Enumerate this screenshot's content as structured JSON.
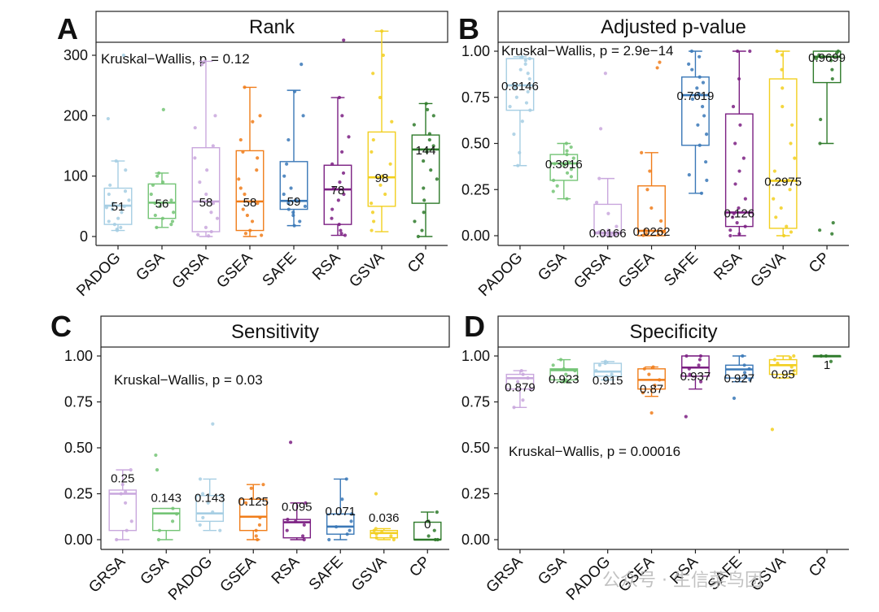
{
  "colors": {
    "PADOG": "#a6cee3",
    "GSA": "#74c476",
    "GRSA": "#c9a7dd",
    "GSEA": "#f07d1a",
    "SAFE": "#3a78b7",
    "RSA": "#7b1f82",
    "GSVA": "#f2cf1f",
    "CP": "#2e7a2a"
  },
  "watermark": "公众号 · 生信菜鸟团",
  "chart_data": [
    {
      "panel": "A",
      "type": "box",
      "title": "Rank",
      "stat_label": "Kruskal−Wallis, p = 0.12",
      "ylim": [
        0,
        340
      ],
      "yticks": [
        0,
        100,
        200,
        300
      ],
      "ytick_labels": [
        "0",
        "100",
        "200",
        "300"
      ],
      "categories": [
        "PADOG",
        "GSA",
        "GRSA",
        "GSEA",
        "SAFE",
        "RSA",
        "GSVA",
        "CP"
      ],
      "median_labels": [
        "51",
        "56",
        "58",
        "58",
        "59",
        "78",
        "98",
        "144"
      ],
      "boxes": [
        {
          "group": "PADOG",
          "min": 10,
          "q1": 20,
          "median": 51,
          "q3": 80,
          "max": 125,
          "points": [
            300,
            195,
            125,
            110,
            85,
            75,
            70,
            60,
            55,
            50,
            48,
            45,
            40,
            30,
            25,
            20,
            15,
            12,
            10
          ]
        },
        {
          "group": "GSA",
          "min": 15,
          "q1": 30,
          "median": 56,
          "q3": 87,
          "max": 105,
          "points": [
            210,
            105,
            100,
            90,
            85,
            70,
            60,
            55,
            50,
            40,
            35,
            30,
            25,
            20,
            15
          ]
        },
        {
          "group": "GRSA",
          "min": 0,
          "q1": 8,
          "median": 58,
          "q3": 147,
          "max": 290,
          "points": [
            290,
            285,
            200,
            180,
            150,
            130,
            110,
            90,
            70,
            55,
            40,
            30,
            15,
            8,
            3,
            1
          ]
        },
        {
          "group": "GSEA",
          "min": 0,
          "q1": 10,
          "median": 58,
          "q3": 142,
          "max": 247,
          "points": [
            247,
            200,
            190,
            160,
            140,
            130,
            110,
            95,
            80,
            70,
            55,
            45,
            35,
            25,
            10,
            5,
            2
          ]
        },
        {
          "group": "SAFE",
          "min": 18,
          "q1": 45,
          "median": 59,
          "q3": 124,
          "max": 242,
          "points": [
            285,
            240,
            200,
            160,
            120,
            100,
            80,
            70,
            60,
            55,
            50,
            45,
            40,
            35,
            25,
            18
          ]
        },
        {
          "group": "RSA",
          "min": 2,
          "q1": 20,
          "median": 78,
          "q3": 118,
          "max": 230,
          "points": [
            325,
            230,
            200,
            165,
            140,
            120,
            105,
            90,
            80,
            70,
            60,
            45,
            30,
            20,
            10,
            5,
            2
          ]
        },
        {
          "group": "GSVA",
          "min": 8,
          "q1": 50,
          "median": 98,
          "q3": 173,
          "max": 340,
          "points": [
            340,
            300,
            270,
            230,
            190,
            160,
            140,
            120,
            100,
            85,
            70,
            55,
            40,
            25,
            10
          ]
        },
        {
          "group": "CP",
          "min": 0,
          "q1": 55,
          "median": 144,
          "q3": 168,
          "max": 220,
          "points": [
            220,
            210,
            200,
            185,
            170,
            160,
            150,
            140,
            125,
            110,
            95,
            80,
            60,
            40,
            25,
            10,
            0
          ]
        }
      ]
    },
    {
      "panel": "B",
      "type": "box",
      "title": "Adjusted p-value",
      "stat_label": "Kruskal−Wallis, p = 2.9e−14",
      "ylim": [
        0,
        1
      ],
      "yticks": [
        0,
        0.25,
        0.5,
        0.75,
        1
      ],
      "ytick_labels": [
        "0.00",
        "0.25",
        "0.50",
        "0.75",
        "1.00"
      ],
      "categories": [
        "PADOG",
        "GSA",
        "GRSA",
        "GSEA",
        "SAFE",
        "RSA",
        "GSVA",
        "CP"
      ],
      "median_labels": [
        "0.8146",
        "0.3916",
        "0.0166",
        "0.0262",
        "0.7619",
        "0.126",
        "0.2975",
        "0.9699"
      ],
      "boxes": [
        {
          "group": "PADOG",
          "min": 0.38,
          "q1": 0.68,
          "median": 0.8146,
          "q3": 0.96,
          "max": 0.97,
          "points": [
            0.97,
            0.96,
            0.95,
            0.93,
            0.9,
            0.88,
            0.85,
            0.82,
            0.8,
            0.78,
            0.75,
            0.72,
            0.7,
            0.68,
            0.62,
            0.55,
            0.45,
            0.38
          ]
        },
        {
          "group": "GSA",
          "min": 0.2,
          "q1": 0.3,
          "median": 0.3916,
          "q3": 0.44,
          "max": 0.5,
          "points": [
            0.5,
            0.48,
            0.46,
            0.44,
            0.42,
            0.4,
            0.39,
            0.38,
            0.36,
            0.34,
            0.32,
            0.3,
            0.27,
            0.24,
            0.2
          ]
        },
        {
          "group": "GRSA",
          "min": 0,
          "q1": 0.01,
          "median": 0.0166,
          "q3": 0.17,
          "max": 0.31,
          "points": [
            0.88,
            0.58,
            0.31,
            0.18,
            0.12,
            0.05,
            0.03,
            0.02,
            0.01,
            0.005,
            0.001
          ]
        },
        {
          "group": "GSEA",
          "min": 0,
          "q1": 0,
          "median": 0.0262,
          "q3": 0.27,
          "max": 0.45,
          "points": [
            0.94,
            0.91,
            0.45,
            0.35,
            0.25,
            0.15,
            0.08,
            0.03,
            0.02,
            0.01,
            0.005,
            0.002
          ]
        },
        {
          "group": "SAFE",
          "min": 0.23,
          "q1": 0.49,
          "median": 0.7619,
          "q3": 0.86,
          "max": 1.0,
          "points": [
            1.0,
            0.97,
            0.93,
            0.9,
            0.86,
            0.83,
            0.8,
            0.77,
            0.74,
            0.7,
            0.65,
            0.6,
            0.55,
            0.49,
            0.4,
            0.33,
            0.3,
            0.23
          ]
        },
        {
          "group": "RSA",
          "min": 0,
          "q1": 0.05,
          "median": 0.126,
          "q3": 0.66,
          "max": 1.0,
          "points": [
            1.0,
            1.0,
            0.85,
            0.7,
            0.6,
            0.5,
            0.42,
            0.35,
            0.28,
            0.2,
            0.15,
            0.12,
            0.1,
            0.07,
            0.05,
            0.03,
            0.01,
            0.0
          ]
        },
        {
          "group": "GSVA",
          "min": 0,
          "q1": 0.04,
          "median": 0.2975,
          "q3": 0.85,
          "max": 1.0,
          "points": [
            1.0,
            0.98,
            0.9,
            0.8,
            0.7,
            0.6,
            0.5,
            0.42,
            0.35,
            0.3,
            0.25,
            0.2,
            0.15,
            0.1,
            0.05,
            0.02,
            0.0
          ]
        },
        {
          "group": "CP",
          "min": 0.5,
          "q1": 0.83,
          "median": 0.9699,
          "q3": 1.0,
          "max": 1.0,
          "points": [
            1.0,
            0.99,
            0.98,
            0.97,
            0.96,
            0.95,
            0.9,
            0.85,
            0.63,
            0.5,
            0.07,
            0.03,
            0.01
          ]
        }
      ]
    },
    {
      "panel": "C",
      "type": "box",
      "title": "Sensitivity",
      "stat_label": "Kruskal−Wallis, p = 0.03",
      "ylim": [
        0,
        1
      ],
      "yticks": [
        0,
        0.25,
        0.5,
        0.75,
        1
      ],
      "ytick_labels": [
        "0.00",
        "0.25",
        "0.50",
        "0.75",
        "1.00"
      ],
      "categories": [
        "GRSA",
        "GSA",
        "PADOG",
        "GSEA",
        "RSA",
        "SAFE",
        "GSVA",
        "CP"
      ],
      "median_labels": [
        "0.25",
        "0.143",
        "0.143",
        "0.125",
        "0.095",
        "0.071",
        "0.036",
        "0"
      ],
      "boxes": [
        {
          "group": "GRSA",
          "min": 0,
          "q1": 0.05,
          "median": 0.25,
          "q3": 0.27,
          "max": 0.38,
          "points": [
            0.38,
            0.3,
            0.26,
            0.25,
            0.2,
            0.1,
            0.05,
            0.0
          ]
        },
        {
          "group": "GSA",
          "min": 0,
          "q1": 0.05,
          "median": 0.143,
          "q3": 0.17,
          "max": 0.17,
          "points": [
            0.46,
            0.38,
            0.17,
            0.14,
            0.1,
            0.05,
            0.0
          ]
        },
        {
          "group": "PADOG",
          "min": 0.05,
          "q1": 0.1,
          "median": 0.143,
          "q3": 0.24,
          "max": 0.33,
          "points": [
            0.63,
            0.33,
            0.25,
            0.2,
            0.15,
            0.12,
            0.08,
            0.05
          ]
        },
        {
          "group": "GSEA",
          "min": 0,
          "q1": 0.05,
          "median": 0.125,
          "q3": 0.22,
          "max": 0.3,
          "points": [
            0.3,
            0.28,
            0.2,
            0.12,
            0.08,
            0.05,
            0.02,
            0.0
          ]
        },
        {
          "group": "RSA",
          "min": 0,
          "q1": 0.01,
          "median": 0.095,
          "q3": 0.11,
          "max": 0.2,
          "points": [
            0.53,
            0.2,
            0.11,
            0.1,
            0.08,
            0.05,
            0.02,
            0.0
          ]
        },
        {
          "group": "SAFE",
          "min": 0,
          "q1": 0.03,
          "median": 0.071,
          "q3": 0.14,
          "max": 0.33,
          "points": [
            0.33,
            0.22,
            0.14,
            0.1,
            0.07,
            0.05,
            0.03,
            0.0
          ]
        },
        {
          "group": "GSVA",
          "min": 0,
          "q1": 0.01,
          "median": 0.036,
          "q3": 0.05,
          "max": 0.06,
          "points": [
            0.25,
            0.06,
            0.05,
            0.04,
            0.03,
            0.02,
            0.01,
            0.0
          ]
        },
        {
          "group": "CP",
          "min": 0,
          "q1": 0,
          "median": 0,
          "q3": 0.095,
          "max": 0.15,
          "points": [
            0.15,
            0.1,
            0.05,
            0.02,
            0.0,
            0.0
          ]
        }
      ]
    },
    {
      "panel": "D",
      "type": "box",
      "title": "Specificity",
      "stat_label": "Kruskal−Wallis, p = 0.00016",
      "ylim": [
        0,
        1
      ],
      "yticks": [
        0,
        0.25,
        0.5,
        0.75,
        1
      ],
      "ytick_labels": [
        "0.00",
        "0.25",
        "0.50",
        "0.75",
        "1.00"
      ],
      "categories": [
        "GRSA",
        "GSA",
        "PADOG",
        "GSEA",
        "RSA",
        "SAFE",
        "GSVA",
        "CP"
      ],
      "median_labels": [
        "0.879",
        "0.923",
        "0.915",
        "0.87",
        "0.937",
        "0.927",
        "0.95",
        "1"
      ],
      "boxes": [
        {
          "group": "GRSA",
          "min": 0.72,
          "q1": 0.82,
          "median": 0.879,
          "q3": 0.9,
          "max": 0.92,
          "points": [
            0.92,
            0.9,
            0.88,
            0.86,
            0.82,
            0.76,
            0.72
          ]
        },
        {
          "group": "GSA",
          "min": 0.86,
          "q1": 0.87,
          "median": 0.923,
          "q3": 0.93,
          "max": 0.98,
          "points": [
            0.98,
            0.95,
            0.93,
            0.92,
            0.9,
            0.87,
            0.86
          ]
        },
        {
          "group": "PADOG",
          "min": 0.87,
          "q1": 0.89,
          "median": 0.915,
          "q3": 0.96,
          "max": 0.97,
          "points": [
            0.97,
            0.96,
            0.95,
            0.92,
            0.9,
            0.89,
            0.87
          ]
        },
        {
          "group": "GSEA",
          "min": 0.78,
          "q1": 0.82,
          "median": 0.87,
          "q3": 0.93,
          "max": 0.94,
          "points": [
            0.94,
            0.93,
            0.9,
            0.87,
            0.84,
            0.8,
            0.69
          ]
        },
        {
          "group": "RSA",
          "min": 0.82,
          "q1": 0.89,
          "median": 0.937,
          "q3": 1.0,
          "max": 1.0,
          "points": [
            1.0,
            1.0,
            0.98,
            0.95,
            0.93,
            0.9,
            0.86,
            0.67
          ]
        },
        {
          "group": "SAFE",
          "min": 0.86,
          "q1": 0.88,
          "median": 0.927,
          "q3": 0.95,
          "max": 1.0,
          "points": [
            1.0,
            0.95,
            0.93,
            0.91,
            0.89,
            0.87,
            0.77
          ]
        },
        {
          "group": "GSVA",
          "min": 0.88,
          "q1": 0.9,
          "median": 0.95,
          "q3": 0.98,
          "max": 1.0,
          "points": [
            1.0,
            0.99,
            0.98,
            0.96,
            0.94,
            0.92,
            0.9,
            0.6
          ]
        },
        {
          "group": "CP",
          "min": 1.0,
          "q1": 1.0,
          "median": 1.0,
          "q3": 1.0,
          "max": 1.0,
          "points": [
            1.0,
            1.0,
            0.97
          ]
        }
      ]
    }
  ]
}
